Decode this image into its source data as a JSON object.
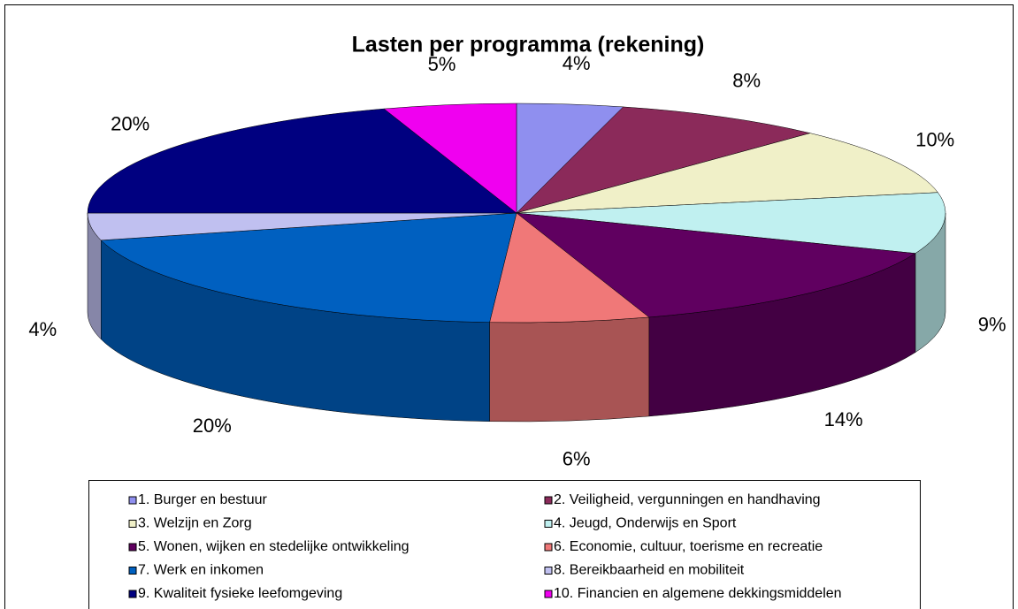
{
  "chart_data": {
    "type": "pie",
    "title": "Lasten per programma (rekening)",
    "categories": [
      "1. Burger en bestuur",
      "2. Veiligheid, vergunningen en handhaving",
      "3. Welzijn en Zorg",
      "4. Jeugd, Onderwijs en Sport",
      "5. Wonen, wijken en stedelijke ontwikkeling",
      "6. Economie, cultuur, toerisme en recreatie",
      "7. Werk en inkomen",
      "8. Bereikbaarheid en mobiliteit",
      "9. Kwaliteit fysieke leefomgeving",
      "10. Financien en algemene dekkingsmiddelen"
    ],
    "values": [
      4,
      8,
      10,
      9,
      14,
      6,
      20,
      4,
      20,
      5
    ],
    "value_labels": [
      "4%",
      "8%",
      "10%",
      "9%",
      "14%",
      "6%",
      "20%",
      "4%",
      "20%",
      "5%"
    ],
    "colors": [
      "#8f8fef",
      "#8b2a5a",
      "#f0f0c8",
      "#c0f0f0",
      "#600060",
      "#f07878",
      "#0060c0",
      "#c0c0f0",
      "#000080",
      "#f000f0"
    ]
  }
}
